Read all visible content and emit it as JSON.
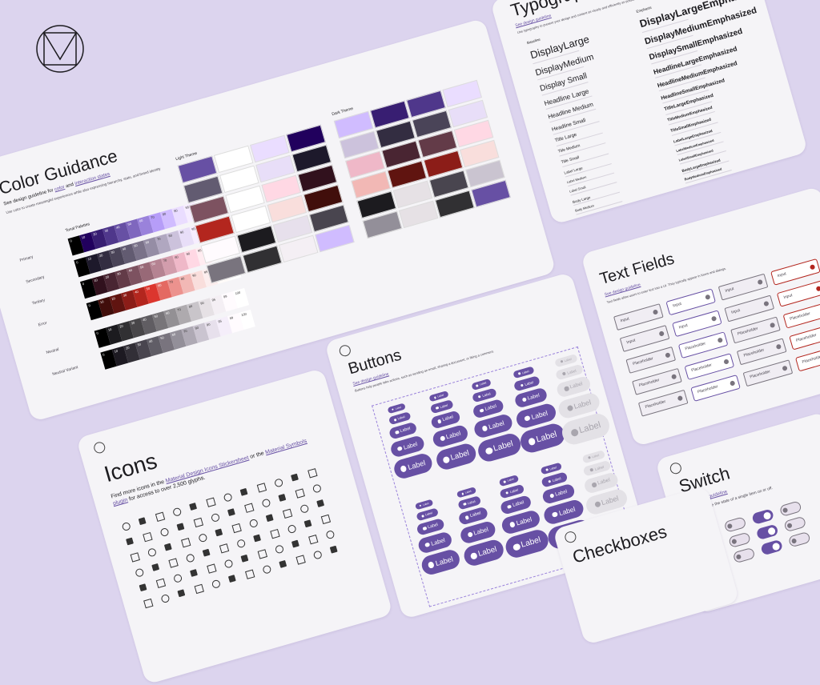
{
  "color_guidance": {
    "title": "Color Guidance",
    "guideline_parts": [
      "See design guideline for ",
      "color",
      " and ",
      "interaction states"
    ],
    "description": "Use color to create meaningful experiences while also expressing hierarchy, state, and brand identity",
    "tonal_palettes_label": "Tonal Palettes",
    "tones": [
      0,
      10,
      20,
      30,
      40,
      50,
      60,
      70,
      80,
      90,
      95,
      99,
      100
    ],
    "palettes": [
      {
        "name": "Primary",
        "colors": [
          "#000000",
          "#21005d",
          "#381e72",
          "#4f378b",
          "#6750a4",
          "#7f67be",
          "#9a82db",
          "#b69df8",
          "#d0bcff",
          "#eaddff",
          "#f6edff",
          "#fffbfe",
          "#ffffff"
        ]
      },
      {
        "name": "Secondary",
        "colors": [
          "#000000",
          "#1d192b",
          "#332d41",
          "#4a4458",
          "#625b71",
          "#7a7289",
          "#958da5",
          "#b0a7c0",
          "#ccc2dc",
          "#e8def8",
          "#f6edff",
          "#fffbfe",
          "#ffffff"
        ]
      },
      {
        "name": "Tertiary",
        "colors": [
          "#000000",
          "#31111d",
          "#492532",
          "#633b48",
          "#7d5260",
          "#986977",
          "#b58392",
          "#d29dac",
          "#efb8c8",
          "#ffd8e4",
          "#ffecf1",
          "#fffbfa",
          "#ffffff"
        ]
      },
      {
        "name": "Error",
        "colors": [
          "#000000",
          "#410e0b",
          "#601410",
          "#8c1d18",
          "#b3261e",
          "#dc362e",
          "#e46962",
          "#ec928e",
          "#f2b8b5",
          "#f9dedc",
          "#fceeee",
          "#fffbf9",
          "#ffffff"
        ]
      },
      {
        "name": "Neutral",
        "colors": [
          "#000000",
          "#1c1b1f",
          "#313033",
          "#484649",
          "#605d62",
          "#787579",
          "#939094",
          "#aeaaae",
          "#c9c5ca",
          "#e6e1e5",
          "#f4eff4",
          "#fffbfe",
          "#ffffff"
        ]
      },
      {
        "name": "Neutral Variant",
        "colors": [
          "#000000",
          "#1d1a22",
          "#322f37",
          "#49454f",
          "#605d66",
          "#79747e",
          "#938f99",
          "#aea9b4",
          "#cac4d0",
          "#e7e0ec",
          "#f5eefa",
          "#fffbfe",
          "#ffffff"
        ]
      }
    ],
    "light_theme_label": "Light Theme",
    "light_theme_colors": [
      "#6750a4",
      "#ffffff",
      "#eaddff",
      "#21005d",
      "#625b71",
      "#ffffff",
      "#e8def8",
      "#1d192b",
      "#7d5260",
      "#ffffff",
      "#ffd8e4",
      "#31111d",
      "#b3261e",
      "#ffffff",
      "#f9dedc",
      "#410e0b",
      "#fffbfe",
      "#1c1b1f",
      "#e7e0ec",
      "#49454f",
      "#79747e",
      "#313033",
      "#f4eff4",
      "#d0bcff"
    ],
    "dark_theme_label": "Dark Theme",
    "dark_theme_colors": [
      "#d0bcff",
      "#381e72",
      "#4f378b",
      "#eaddff",
      "#ccc2dc",
      "#332d41",
      "#4a4458",
      "#e8def8",
      "#efb8c8",
      "#492532",
      "#633b48",
      "#ffd8e4",
      "#f2b8b5",
      "#601410",
      "#8c1d18",
      "#f9dedc",
      "#1c1b1f",
      "#e6e1e5",
      "#49454f",
      "#cac4d0",
      "#938f99",
      "#e6e1e5",
      "#313033",
      "#6750a4"
    ]
  },
  "typography": {
    "title": "Typography",
    "link": "See design guideline",
    "subtitle": "Use typography to present your design and content as clearly and efficiently as possible.",
    "baseline_label": "Baseline",
    "emphasis_label": "Emphasis",
    "baseline": [
      "DisplayLarge",
      "DisplayMedium",
      "Display Small",
      "Headline Large",
      "Headline Medium",
      "Headline Small",
      "Title Large",
      "Title Medium",
      "Title Small",
      "Label Large",
      "Label Medium",
      "Label Small",
      "Body Large",
      "Body Medium",
      "Body Small"
    ],
    "emphasis": [
      "DisplayLargeEmphasized",
      "DisplayMediumEmphasized",
      "DisplaySmallEmphasized",
      "HeadlineLargeEmphasized",
      "HeadlineMediumEmphasized",
      "HeadlineSmallEmphasized",
      "TitleLargeEmphasized",
      "TitleMediumEmphasized",
      "TitleSmallEmphasized",
      "LabelLargeEmphasized",
      "LabelMediumEmphasized",
      "LabelSmallEmphasized",
      "BodyLargeEmphasized",
      "BodyMediumEmphasized",
      "BodySmallEmphasized"
    ]
  },
  "text_fields": {
    "title": "Text Fields",
    "link": "See design guideline",
    "description": "Text fields allow users to enter text into a UI. They typically appear in forms and dialogs.",
    "input": "Input",
    "placeholder": "Placeholder",
    "border_colors": [
      "#79747e",
      "#6750a4",
      "#79747e",
      "#b3261e"
    ]
  },
  "buttons": {
    "title": "Buttons",
    "link": "See design guideline",
    "description": "Buttons help people take actions, such as sending an email, sharing a document, or liking a comment.",
    "label": "Label",
    "color": "#6750a4",
    "disabled_color": "#e3e1e6"
  },
  "icons": {
    "title": "Icons",
    "text_parts": [
      "Find more icons in the ",
      "Material Design Icons Stickersheet",
      " or the ",
      "Material Symbols plugin",
      " for access to over 2,500 glyphs."
    ]
  },
  "switch": {
    "title": "Switch",
    "link": "See design guideline",
    "description": "Switches toggle the state of a single item on or off."
  },
  "checkboxes": {
    "title": "Checkboxes"
  }
}
